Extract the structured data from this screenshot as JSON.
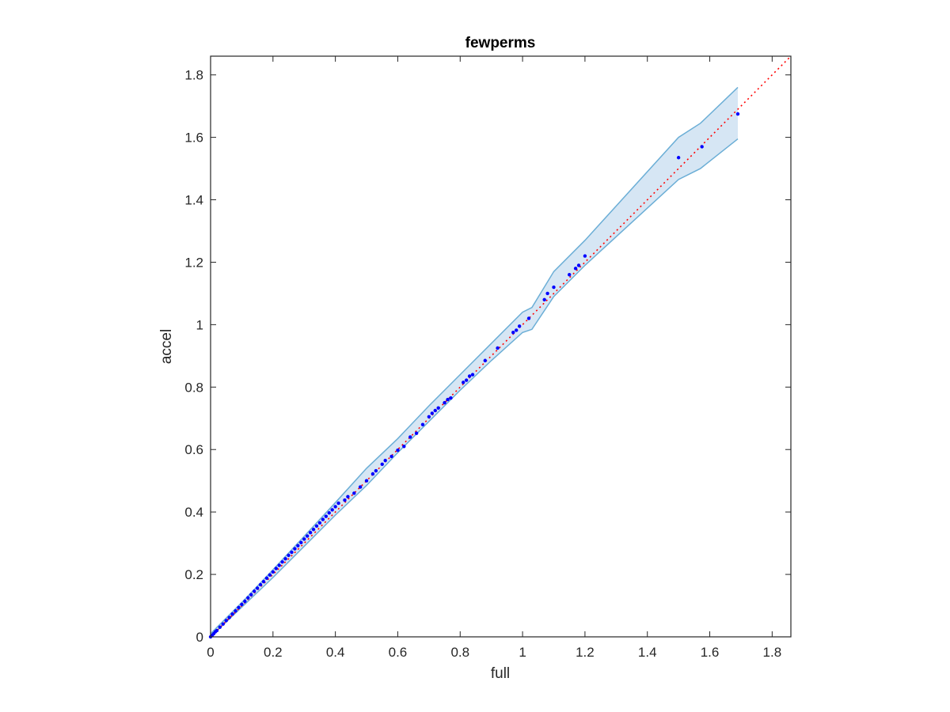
{
  "chart_data": {
    "type": "scatter",
    "title": "fewperms",
    "xlabel": "full",
    "ylabel": "accel",
    "xlim": [
      0,
      1.86
    ],
    "ylim": [
      0,
      1.86
    ],
    "xticks": [
      0,
      0.2,
      0.4,
      0.6,
      0.8,
      1,
      1.2,
      1.4,
      1.6,
      1.8
    ],
    "yticks": [
      0,
      0.2,
      0.4,
      0.6,
      0.8,
      1,
      1.2,
      1.4,
      1.6,
      1.8
    ],
    "xtick_labels": [
      "0",
      "0.2",
      "0.4",
      "0.6",
      "0.8",
      "1",
      "1.2",
      "1.4",
      "1.6",
      "1.8"
    ],
    "ytick_labels": [
      "0",
      "0.2",
      "0.4",
      "0.6",
      "0.8",
      "1",
      "1.2",
      "1.4",
      "1.6",
      "1.8"
    ],
    "grid": false,
    "box": true,
    "reference_line": {
      "from": [
        0,
        0
      ],
      "to": [
        1.86,
        1.86
      ],
      "style": "dotted",
      "color": "#ff0000"
    },
    "band": {
      "color": "#6baed6",
      "fill_color": "#d6e6f4",
      "x": [
        0,
        0.1,
        0.2,
        0.3,
        0.4,
        0.5,
        0.6,
        0.7,
        0.8,
        0.9,
        1.0,
        1.03,
        1.1,
        1.2,
        1.5,
        1.57,
        1.69
      ],
      "upper": [
        0.01,
        0.11,
        0.215,
        0.322,
        0.43,
        0.54,
        0.635,
        0.74,
        0.84,
        0.94,
        1.04,
        1.055,
        1.17,
        1.27,
        1.6,
        1.645,
        1.76
      ],
      "lower": [
        0,
        0.095,
        0.19,
        0.29,
        0.39,
        0.485,
        0.59,
        0.69,
        0.79,
        0.885,
        0.975,
        0.985,
        1.09,
        1.19,
        1.465,
        1.5,
        1.595
      ]
    },
    "series": [
      {
        "color": "#0000ff",
        "points": [
          [
            0,
            0
          ],
          [
            0.005,
            0.005
          ],
          [
            0.01,
            0.01
          ],
          [
            0.015,
            0.016
          ],
          [
            0.02,
            0.02
          ],
          [
            0.03,
            0.031
          ],
          [
            0.04,
            0.041
          ],
          [
            0.05,
            0.052
          ],
          [
            0.06,
            0.062
          ],
          [
            0.07,
            0.073
          ],
          [
            0.08,
            0.083
          ],
          [
            0.09,
            0.094
          ],
          [
            0.1,
            0.104
          ],
          [
            0.11,
            0.114
          ],
          [
            0.12,
            0.125
          ],
          [
            0.13,
            0.135
          ],
          [
            0.14,
            0.146
          ],
          [
            0.15,
            0.156
          ],
          [
            0.16,
            0.167
          ],
          [
            0.17,
            0.177
          ],
          [
            0.18,
            0.188
          ],
          [
            0.19,
            0.198
          ],
          [
            0.2,
            0.208
          ],
          [
            0.21,
            0.219
          ],
          [
            0.22,
            0.229
          ],
          [
            0.23,
            0.24
          ],
          [
            0.24,
            0.25
          ],
          [
            0.25,
            0.261
          ],
          [
            0.26,
            0.271
          ],
          [
            0.27,
            0.282
          ],
          [
            0.28,
            0.292
          ],
          [
            0.29,
            0.302
          ],
          [
            0.3,
            0.313
          ],
          [
            0.31,
            0.323
          ],
          [
            0.32,
            0.334
          ],
          [
            0.33,
            0.344
          ],
          [
            0.34,
            0.355
          ],
          [
            0.35,
            0.365
          ],
          [
            0.36,
            0.376
          ],
          [
            0.37,
            0.386
          ],
          [
            0.38,
            0.397
          ],
          [
            0.39,
            0.407
          ],
          [
            0.4,
            0.417
          ],
          [
            0.41,
            0.428
          ],
          [
            0.43,
            0.438
          ],
          [
            0.44,
            0.449
          ],
          [
            0.46,
            0.46
          ],
          [
            0.48,
            0.48
          ],
          [
            0.5,
            0.5
          ],
          [
            0.52,
            0.522
          ],
          [
            0.53,
            0.532
          ],
          [
            0.55,
            0.553
          ],
          [
            0.56,
            0.565
          ],
          [
            0.58,
            0.578
          ],
          [
            0.6,
            0.598
          ],
          [
            0.62,
            0.61
          ],
          [
            0.64,
            0.64
          ],
          [
            0.66,
            0.652
          ],
          [
            0.68,
            0.68
          ],
          [
            0.7,
            0.705
          ],
          [
            0.71,
            0.716
          ],
          [
            0.72,
            0.725
          ],
          [
            0.73,
            0.733
          ],
          [
            0.75,
            0.75
          ],
          [
            0.76,
            0.76
          ],
          [
            0.77,
            0.765
          ],
          [
            0.81,
            0.815
          ],
          [
            0.82,
            0.822
          ],
          [
            0.83,
            0.835
          ],
          [
            0.84,
            0.84
          ],
          [
            0.88,
            0.885
          ],
          [
            0.92,
            0.925
          ],
          [
            0.97,
            0.975
          ],
          [
            0.98,
            0.982
          ],
          [
            0.99,
            0.995
          ],
          [
            1.02,
            1.02
          ],
          [
            1.07,
            1.08
          ],
          [
            1.08,
            1.1
          ],
          [
            1.1,
            1.12
          ],
          [
            1.15,
            1.16
          ],
          [
            1.17,
            1.18
          ],
          [
            1.18,
            1.19
          ],
          [
            1.2,
            1.22
          ],
          [
            1.5,
            1.535
          ],
          [
            1.575,
            1.57
          ],
          [
            1.69,
            1.675
          ]
        ]
      }
    ]
  }
}
